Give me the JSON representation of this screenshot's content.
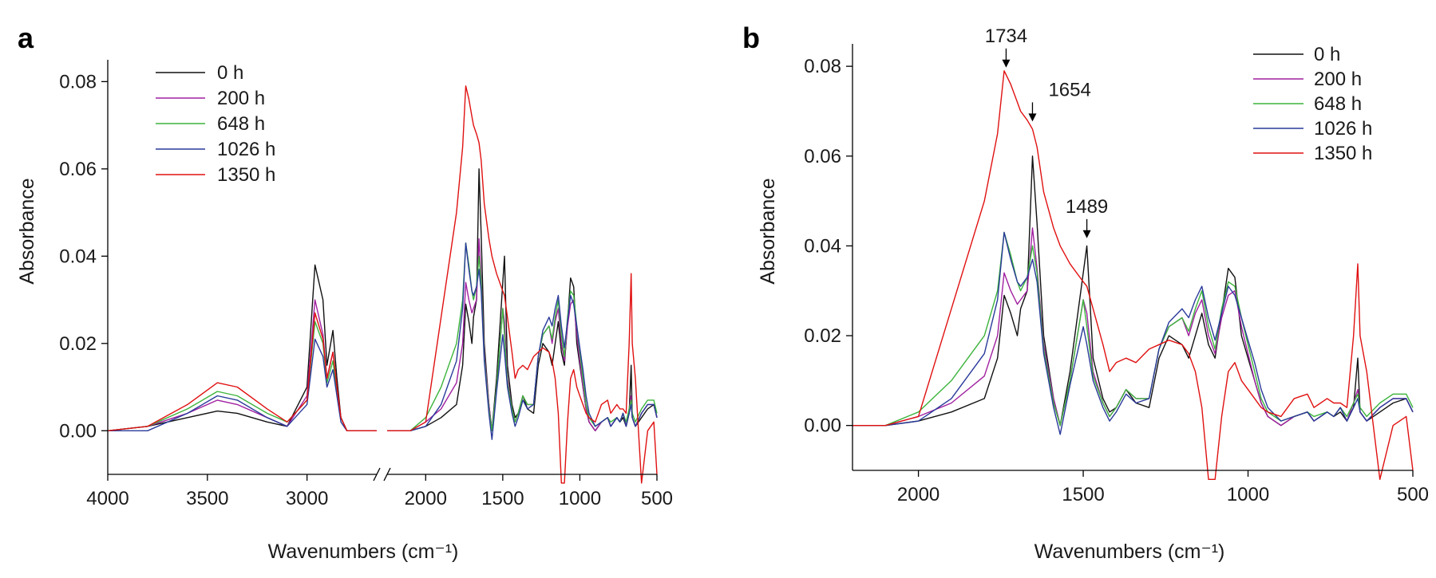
{
  "panels": [
    {
      "letter": "a"
    },
    {
      "letter": "b"
    }
  ],
  "chart_data": [
    {
      "type": "line",
      "panel": "a",
      "xlabel": "Wavenumbers (cm⁻¹)",
      "ylabel": "Absorbance",
      "x_reversed": true,
      "x_axis_break": {
        "between": [
          2650,
          2250
        ]
      },
      "xlim_segments": [
        [
          4000,
          2650
        ],
        [
          2250,
          500
        ]
      ],
      "xticks": [
        4000,
        3500,
        3000,
        2000,
        1500,
        1000,
        500
      ],
      "ylim": [
        -0.01,
        0.085
      ],
      "yticks": [
        0.0,
        0.02,
        0.04,
        0.06,
        0.08
      ],
      "ytick_labels": [
        "0.00",
        "0.02",
        "0.04",
        "0.06",
        "0.08"
      ],
      "legend_position": "top-left",
      "series": [
        {
          "name": "0 h",
          "color": "#111111",
          "x": [
            4000,
            3800,
            3600,
            3450,
            3350,
            3200,
            3100,
            3000,
            2960,
            2920,
            2900,
            2870,
            2850,
            2830,
            2800,
            2700,
            2650,
            2250,
            2100,
            2000,
            1900,
            1800,
            1760,
            1740,
            1720,
            1700,
            1690,
            1670,
            1654,
            1640,
            1620,
            1590,
            1570,
            1540,
            1500,
            1489,
            1470,
            1440,
            1420,
            1400,
            1370,
            1340,
            1300,
            1270,
            1240,
            1200,
            1180,
            1160,
            1140,
            1120,
            1100,
            1080,
            1060,
            1040,
            1020,
            1000,
            980,
            960,
            940,
            900,
            860,
            820,
            800,
            760,
            740,
            720,
            700,
            680,
            667,
            660,
            640,
            600,
            560,
            520,
            500
          ],
          "y": [
            0.0,
            0.001,
            0.003,
            0.0045,
            0.004,
            0.002,
            0.001,
            0.01,
            0.038,
            0.03,
            0.015,
            0.023,
            0.012,
            0.003,
            0.0,
            0.0,
            0.0,
            0.0,
            0.0,
            0.001,
            0.003,
            0.006,
            0.015,
            0.029,
            0.025,
            0.02,
            0.026,
            0.03,
            0.06,
            0.045,
            0.02,
            0.006,
            0.0,
            0.012,
            0.034,
            0.04,
            0.015,
            0.006,
            0.003,
            0.004,
            0.008,
            0.005,
            0.004,
            0.015,
            0.02,
            0.018,
            0.015,
            0.02,
            0.025,
            0.018,
            0.015,
            0.025,
            0.035,
            0.033,
            0.02,
            0.015,
            0.01,
            0.005,
            0.002,
            0.0,
            0.002,
            0.003,
            0.001,
            0.003,
            0.002,
            0.003,
            0.001,
            0.004,
            0.015,
            0.003,
            0.001,
            0.003,
            0.005,
            0.006,
            0.003
          ]
        },
        {
          "name": "200 h",
          "color": "#a020a0",
          "x": [
            4000,
            3800,
            3600,
            3450,
            3350,
            3200,
            3100,
            3000,
            2960,
            2920,
            2900,
            2870,
            2850,
            2830,
            2800,
            2700,
            2650,
            2250,
            2100,
            2000,
            1900,
            1800,
            1760,
            1740,
            1720,
            1700,
            1690,
            1670,
            1654,
            1640,
            1620,
            1590,
            1570,
            1540,
            1500,
            1489,
            1470,
            1440,
            1420,
            1400,
            1370,
            1340,
            1300,
            1270,
            1240,
            1200,
            1180,
            1160,
            1140,
            1120,
            1100,
            1080,
            1060,
            1040,
            1020,
            1000,
            980,
            960,
            940,
            900,
            860,
            820,
            800,
            760,
            740,
            720,
            700,
            680,
            667,
            660,
            640,
            600,
            560,
            520,
            500
          ],
          "y": [
            0.0,
            0.001,
            0.004,
            0.007,
            0.006,
            0.003,
            0.001,
            0.008,
            0.03,
            0.022,
            0.012,
            0.018,
            0.01,
            0.003,
            0.0,
            0.0,
            0.0,
            0.0,
            0.0,
            0.002,
            0.005,
            0.011,
            0.02,
            0.034,
            0.03,
            0.027,
            0.028,
            0.03,
            0.044,
            0.035,
            0.018,
            0.006,
            0.0,
            0.01,
            0.028,
            0.025,
            0.012,
            0.005,
            0.002,
            0.004,
            0.008,
            0.006,
            0.006,
            0.017,
            0.022,
            0.024,
            0.02,
            0.025,
            0.028,
            0.02,
            0.016,
            0.024,
            0.029,
            0.03,
            0.022,
            0.016,
            0.01,
            0.005,
            0.002,
            0.0,
            0.002,
            0.003,
            0.001,
            0.003,
            0.002,
            0.004,
            0.001,
            0.005,
            0.008,
            0.003,
            0.001,
            0.004,
            0.006,
            0.006,
            0.003
          ]
        },
        {
          "name": "648 h",
          "color": "#3cb43c",
          "x": [
            4000,
            3800,
            3600,
            3450,
            3350,
            3200,
            3100,
            3000,
            2960,
            2920,
            2900,
            2870,
            2850,
            2830,
            2800,
            2700,
            2650,
            2250,
            2100,
            2000,
            1900,
            1800,
            1760,
            1740,
            1720,
            1700,
            1690,
            1670,
            1654,
            1640,
            1620,
            1590,
            1570,
            1540,
            1500,
            1489,
            1470,
            1440,
            1420,
            1400,
            1370,
            1340,
            1300,
            1270,
            1240,
            1200,
            1180,
            1160,
            1140,
            1120,
            1100,
            1080,
            1060,
            1040,
            1020,
            1000,
            980,
            960,
            940,
            900,
            860,
            820,
            800,
            760,
            740,
            720,
            700,
            680,
            667,
            660,
            640,
            600,
            560,
            520,
            500
          ],
          "y": [
            0.0,
            0.001,
            0.005,
            0.009,
            0.008,
            0.004,
            0.002,
            0.007,
            0.025,
            0.02,
            0.011,
            0.016,
            0.009,
            0.003,
            0.0,
            0.0,
            0.0,
            0.0,
            0.0,
            0.003,
            0.01,
            0.02,
            0.03,
            0.043,
            0.038,
            0.032,
            0.03,
            0.033,
            0.04,
            0.034,
            0.017,
            0.005,
            0.0,
            0.01,
            0.028,
            0.022,
            0.011,
            0.005,
            0.002,
            0.004,
            0.008,
            0.006,
            0.006,
            0.017,
            0.022,
            0.024,
            0.021,
            0.026,
            0.03,
            0.022,
            0.017,
            0.026,
            0.032,
            0.031,
            0.024,
            0.018,
            0.012,
            0.006,
            0.003,
            0.001,
            0.002,
            0.003,
            0.002,
            0.003,
            0.002,
            0.004,
            0.002,
            0.005,
            0.007,
            0.004,
            0.002,
            0.005,
            0.007,
            0.007,
            0.004
          ]
        },
        {
          "name": "1026 h",
          "color": "#2a3a9a",
          "x": [
            4000,
            3800,
            3600,
            3450,
            3350,
            3200,
            3100,
            3000,
            2960,
            2920,
            2900,
            2870,
            2850,
            2830,
            2800,
            2700,
            2650,
            2250,
            2100,
            2000,
            1900,
            1800,
            1760,
            1740,
            1720,
            1700,
            1690,
            1670,
            1654,
            1640,
            1620,
            1590,
            1570,
            1540,
            1500,
            1489,
            1470,
            1440,
            1420,
            1400,
            1370,
            1340,
            1300,
            1270,
            1240,
            1200,
            1180,
            1160,
            1140,
            1120,
            1100,
            1080,
            1060,
            1040,
            1020,
            1000,
            980,
            960,
            940,
            900,
            860,
            820,
            800,
            760,
            740,
            720,
            700,
            680,
            667,
            660,
            640,
            600,
            560,
            520,
            500
          ],
          "y": [
            0.0,
            0.0,
            0.004,
            0.008,
            0.007,
            0.003,
            0.001,
            0.006,
            0.021,
            0.017,
            0.01,
            0.014,
            0.008,
            0.002,
            0.0,
            0.0,
            0.0,
            0.0,
            0.0,
            0.001,
            0.006,
            0.016,
            0.028,
            0.043,
            0.037,
            0.032,
            0.031,
            0.033,
            0.037,
            0.032,
            0.016,
            0.004,
            -0.002,
            0.009,
            0.022,
            0.018,
            0.01,
            0.004,
            0.001,
            0.003,
            0.007,
            0.005,
            0.006,
            0.017,
            0.023,
            0.026,
            0.024,
            0.028,
            0.031,
            0.024,
            0.019,
            0.025,
            0.031,
            0.029,
            0.024,
            0.019,
            0.014,
            0.008,
            0.004,
            0.001,
            0.002,
            0.003,
            0.001,
            0.003,
            0.002,
            0.004,
            0.001,
            0.004,
            0.006,
            0.003,
            0.001,
            0.004,
            0.006,
            0.006,
            0.003
          ]
        },
        {
          "name": "1350 h",
          "color": "#e01010",
          "x": [
            4000,
            3800,
            3600,
            3450,
            3350,
            3200,
            3100,
            3000,
            2960,
            2920,
            2900,
            2870,
            2850,
            2830,
            2800,
            2700,
            2650,
            2250,
            2100,
            2000,
            1900,
            1800,
            1760,
            1740,
            1720,
            1700,
            1690,
            1670,
            1654,
            1640,
            1620,
            1590,
            1570,
            1540,
            1500,
            1489,
            1470,
            1440,
            1420,
            1400,
            1370,
            1340,
            1300,
            1270,
            1240,
            1200,
            1180,
            1160,
            1140,
            1120,
            1100,
            1080,
            1060,
            1040,
            1020,
            1000,
            980,
            960,
            940,
            900,
            860,
            820,
            800,
            760,
            740,
            720,
            700,
            680,
            667,
            660,
            640,
            600,
            560,
            520,
            500
          ],
          "y": [
            0.0,
            0.001,
            0.006,
            0.011,
            0.01,
            0.005,
            0.002,
            0.007,
            0.027,
            0.021,
            0.012,
            0.018,
            0.01,
            0.003,
            0.0,
            0.0,
            0.0,
            0.0,
            0.0,
            0.002,
            0.026,
            0.05,
            0.065,
            0.079,
            0.076,
            0.072,
            0.07,
            0.068,
            0.066,
            0.062,
            0.052,
            0.044,
            0.04,
            0.036,
            0.032,
            0.031,
            0.026,
            0.018,
            0.012,
            0.014,
            0.015,
            0.014,
            0.017,
            0.018,
            0.019,
            0.018,
            0.016,
            0.012,
            0.004,
            -0.012,
            -0.012,
            0.002,
            0.012,
            0.014,
            0.01,
            0.008,
            0.006,
            0.004,
            0.003,
            0.002,
            0.006,
            0.007,
            0.004,
            0.006,
            0.005,
            0.005,
            0.004,
            0.02,
            0.036,
            0.02,
            0.012,
            -0.012,
            0.0,
            0.002,
            -0.01
          ]
        }
      ]
    },
    {
      "type": "line",
      "panel": "b",
      "xlabel": "Wavenumbers (cm⁻¹)",
      "ylabel": "Absorbance",
      "x_reversed": true,
      "xlim": [
        2200,
        500
      ],
      "xticks": [
        2000,
        1500,
        1000,
        500
      ],
      "ylim": [
        -0.01,
        0.085
      ],
      "yticks": [
        0.0,
        0.02,
        0.04,
        0.06,
        0.08
      ],
      "ytick_labels": [
        "0.00",
        "0.02",
        "0.04",
        "0.06",
        "0.08"
      ],
      "legend_position": "top-right",
      "annotations": [
        {
          "text": "1734",
          "x": 1734,
          "y": 0.079
        },
        {
          "text": "1654",
          "x": 1654,
          "y": 0.067
        },
        {
          "text": "1489",
          "x": 1489,
          "y": 0.041
        }
      ],
      "series_ref": "same series as panel a (0 h, 200 h, 648 h, 1026 h, 1350 h), range 2200–500 cm⁻¹"
    }
  ]
}
